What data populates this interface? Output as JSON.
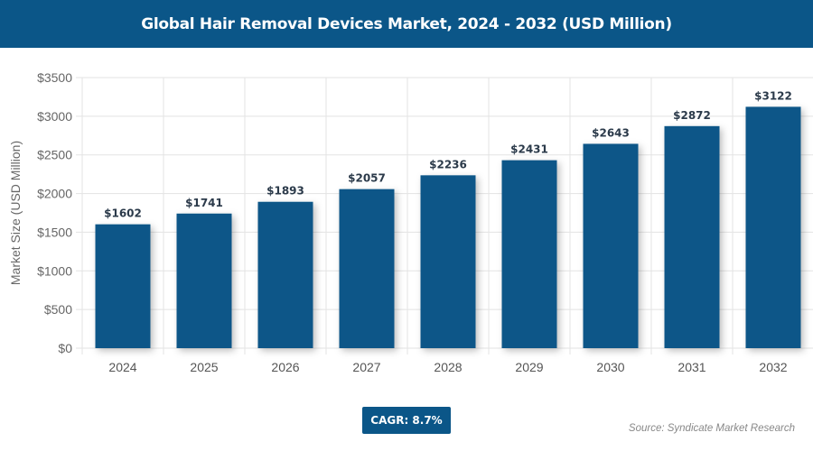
{
  "title": "Global Hair Removal Devices Market, 2024 - 2032 (USD Million)",
  "cagr": "CAGR: 8.7%",
  "source": "Source: Syndicate Market Research",
  "colors": {
    "bar": "#0b5688",
    "header": "#0b5688"
  },
  "chart_data": {
    "type": "bar",
    "title": "Global Hair Removal Devices Market, 2024 - 2032 (USD Million)",
    "xlabel": "",
    "ylabel": "Market Size (USD Million)",
    "categories": [
      "2024",
      "2025",
      "2026",
      "2027",
      "2028",
      "2029",
      "2030",
      "2031",
      "2032"
    ],
    "values": [
      1602,
      1741,
      1893,
      2057,
      2236,
      2431,
      2643,
      2872,
      3122
    ],
    "data_labels": [
      "$1602",
      "$1741",
      "$1893",
      "$2057",
      "$2236",
      "$2431",
      "$2643",
      "$2872",
      "$3122"
    ],
    "ylim": [
      0,
      3500
    ],
    "yticks": [
      "$0",
      "$500",
      "$1000",
      "$1500",
      "$2000",
      "$2500",
      "$3000",
      "$3500"
    ],
    "grid": true
  }
}
